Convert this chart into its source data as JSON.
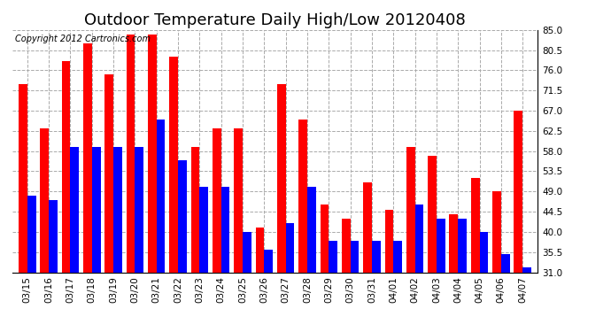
{
  "title": "Outdoor Temperature Daily High/Low 20120408",
  "copyright": "Copyright 2012 Cartronics.com",
  "dates": [
    "03/15",
    "03/16",
    "03/17",
    "03/18",
    "03/19",
    "03/20",
    "03/21",
    "03/22",
    "03/23",
    "03/24",
    "03/25",
    "03/26",
    "03/27",
    "03/28",
    "03/29",
    "03/30",
    "03/31",
    "04/01",
    "04/02",
    "04/03",
    "04/04",
    "04/05",
    "04/06",
    "04/07"
  ],
  "highs": [
    73,
    63,
    78,
    82,
    75,
    84,
    84,
    79,
    59,
    63,
    63,
    41,
    73,
    65,
    46,
    43,
    51,
    45,
    59,
    57,
    44,
    52,
    49,
    67
  ],
  "lows": [
    48,
    47,
    59,
    59,
    59,
    59,
    65,
    56,
    50,
    50,
    40,
    36,
    42,
    50,
    38,
    38,
    38,
    38,
    46,
    43,
    43,
    40,
    35,
    32
  ],
  "high_color": "#ff0000",
  "low_color": "#0000ff",
  "background_color": "#ffffff",
  "grid_color": "#aaaaaa",
  "ylim": [
    31.0,
    85.0
  ],
  "yticks": [
    31.0,
    35.5,
    40.0,
    44.5,
    49.0,
    53.5,
    58.0,
    62.5,
    67.0,
    71.5,
    76.0,
    80.5,
    85.0
  ],
  "bar_width": 0.4,
  "title_fontsize": 13,
  "axis_fontsize": 7.5,
  "copyright_fontsize": 7
}
